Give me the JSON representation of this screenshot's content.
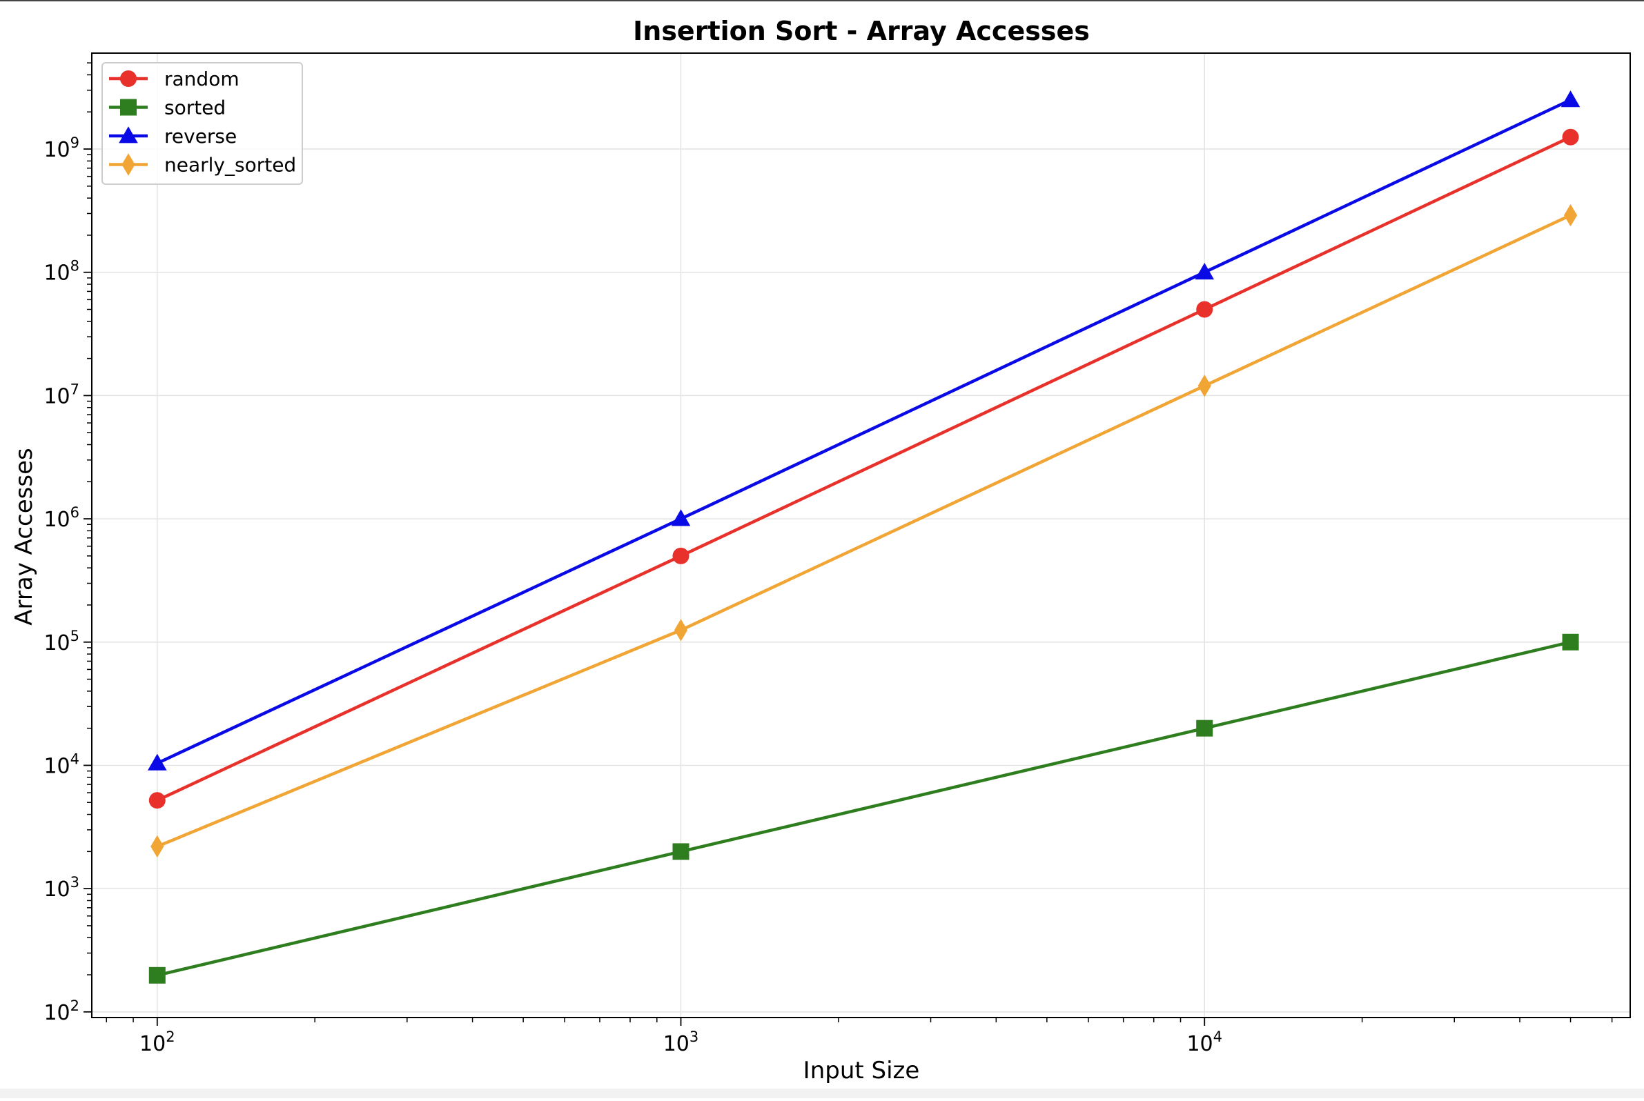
{
  "chart_data": {
    "type": "line",
    "title": "Insertion Sort - Array Accesses",
    "xlabel": "Input Size",
    "ylabel": "Array Accesses",
    "x_scale": "log",
    "y_scale": "log",
    "x": [
      100,
      1000,
      10000,
      50000
    ],
    "xlim": [
      75,
      65000
    ],
    "ylim": [
      90,
      6000000000
    ],
    "x_ticks": [
      {
        "value": 100,
        "base": "10",
        "exp": "2"
      },
      {
        "value": 1000,
        "base": "10",
        "exp": "3"
      },
      {
        "value": 10000,
        "base": "10",
        "exp": "4"
      }
    ],
    "y_ticks": [
      {
        "value": 100,
        "base": "10",
        "exp": "2"
      },
      {
        "value": 1000,
        "base": "10",
        "exp": "3"
      },
      {
        "value": 10000,
        "base": "10",
        "exp": "4"
      },
      {
        "value": 100000,
        "base": "10",
        "exp": "5"
      },
      {
        "value": 1000000,
        "base": "10",
        "exp": "6"
      },
      {
        "value": 10000000,
        "base": "10",
        "exp": "7"
      },
      {
        "value": 100000000,
        "base": "10",
        "exp": "8"
      },
      {
        "value": 1000000000,
        "base": "10",
        "exp": "9"
      }
    ],
    "grid": true,
    "legend_position": "top-left",
    "series": [
      {
        "name": "random",
        "color": "#e8312a",
        "marker": "circle",
        "values": [
          5200,
          500000,
          50000000,
          1250000000
        ]
      },
      {
        "name": "sorted",
        "color": "#2e7d1e",
        "marker": "square",
        "values": [
          198,
          1998,
          19998,
          99998
        ]
      },
      {
        "name": "reverse",
        "color": "#0a0ae6",
        "marker": "triangle",
        "values": [
          10400,
          1000000,
          100000000,
          2500000000
        ]
      },
      {
        "name": "nearly_sorted",
        "color": "#f0a535",
        "marker": "diamond",
        "values": [
          2200,
          125000,
          12000000,
          290000000
        ]
      }
    ]
  }
}
